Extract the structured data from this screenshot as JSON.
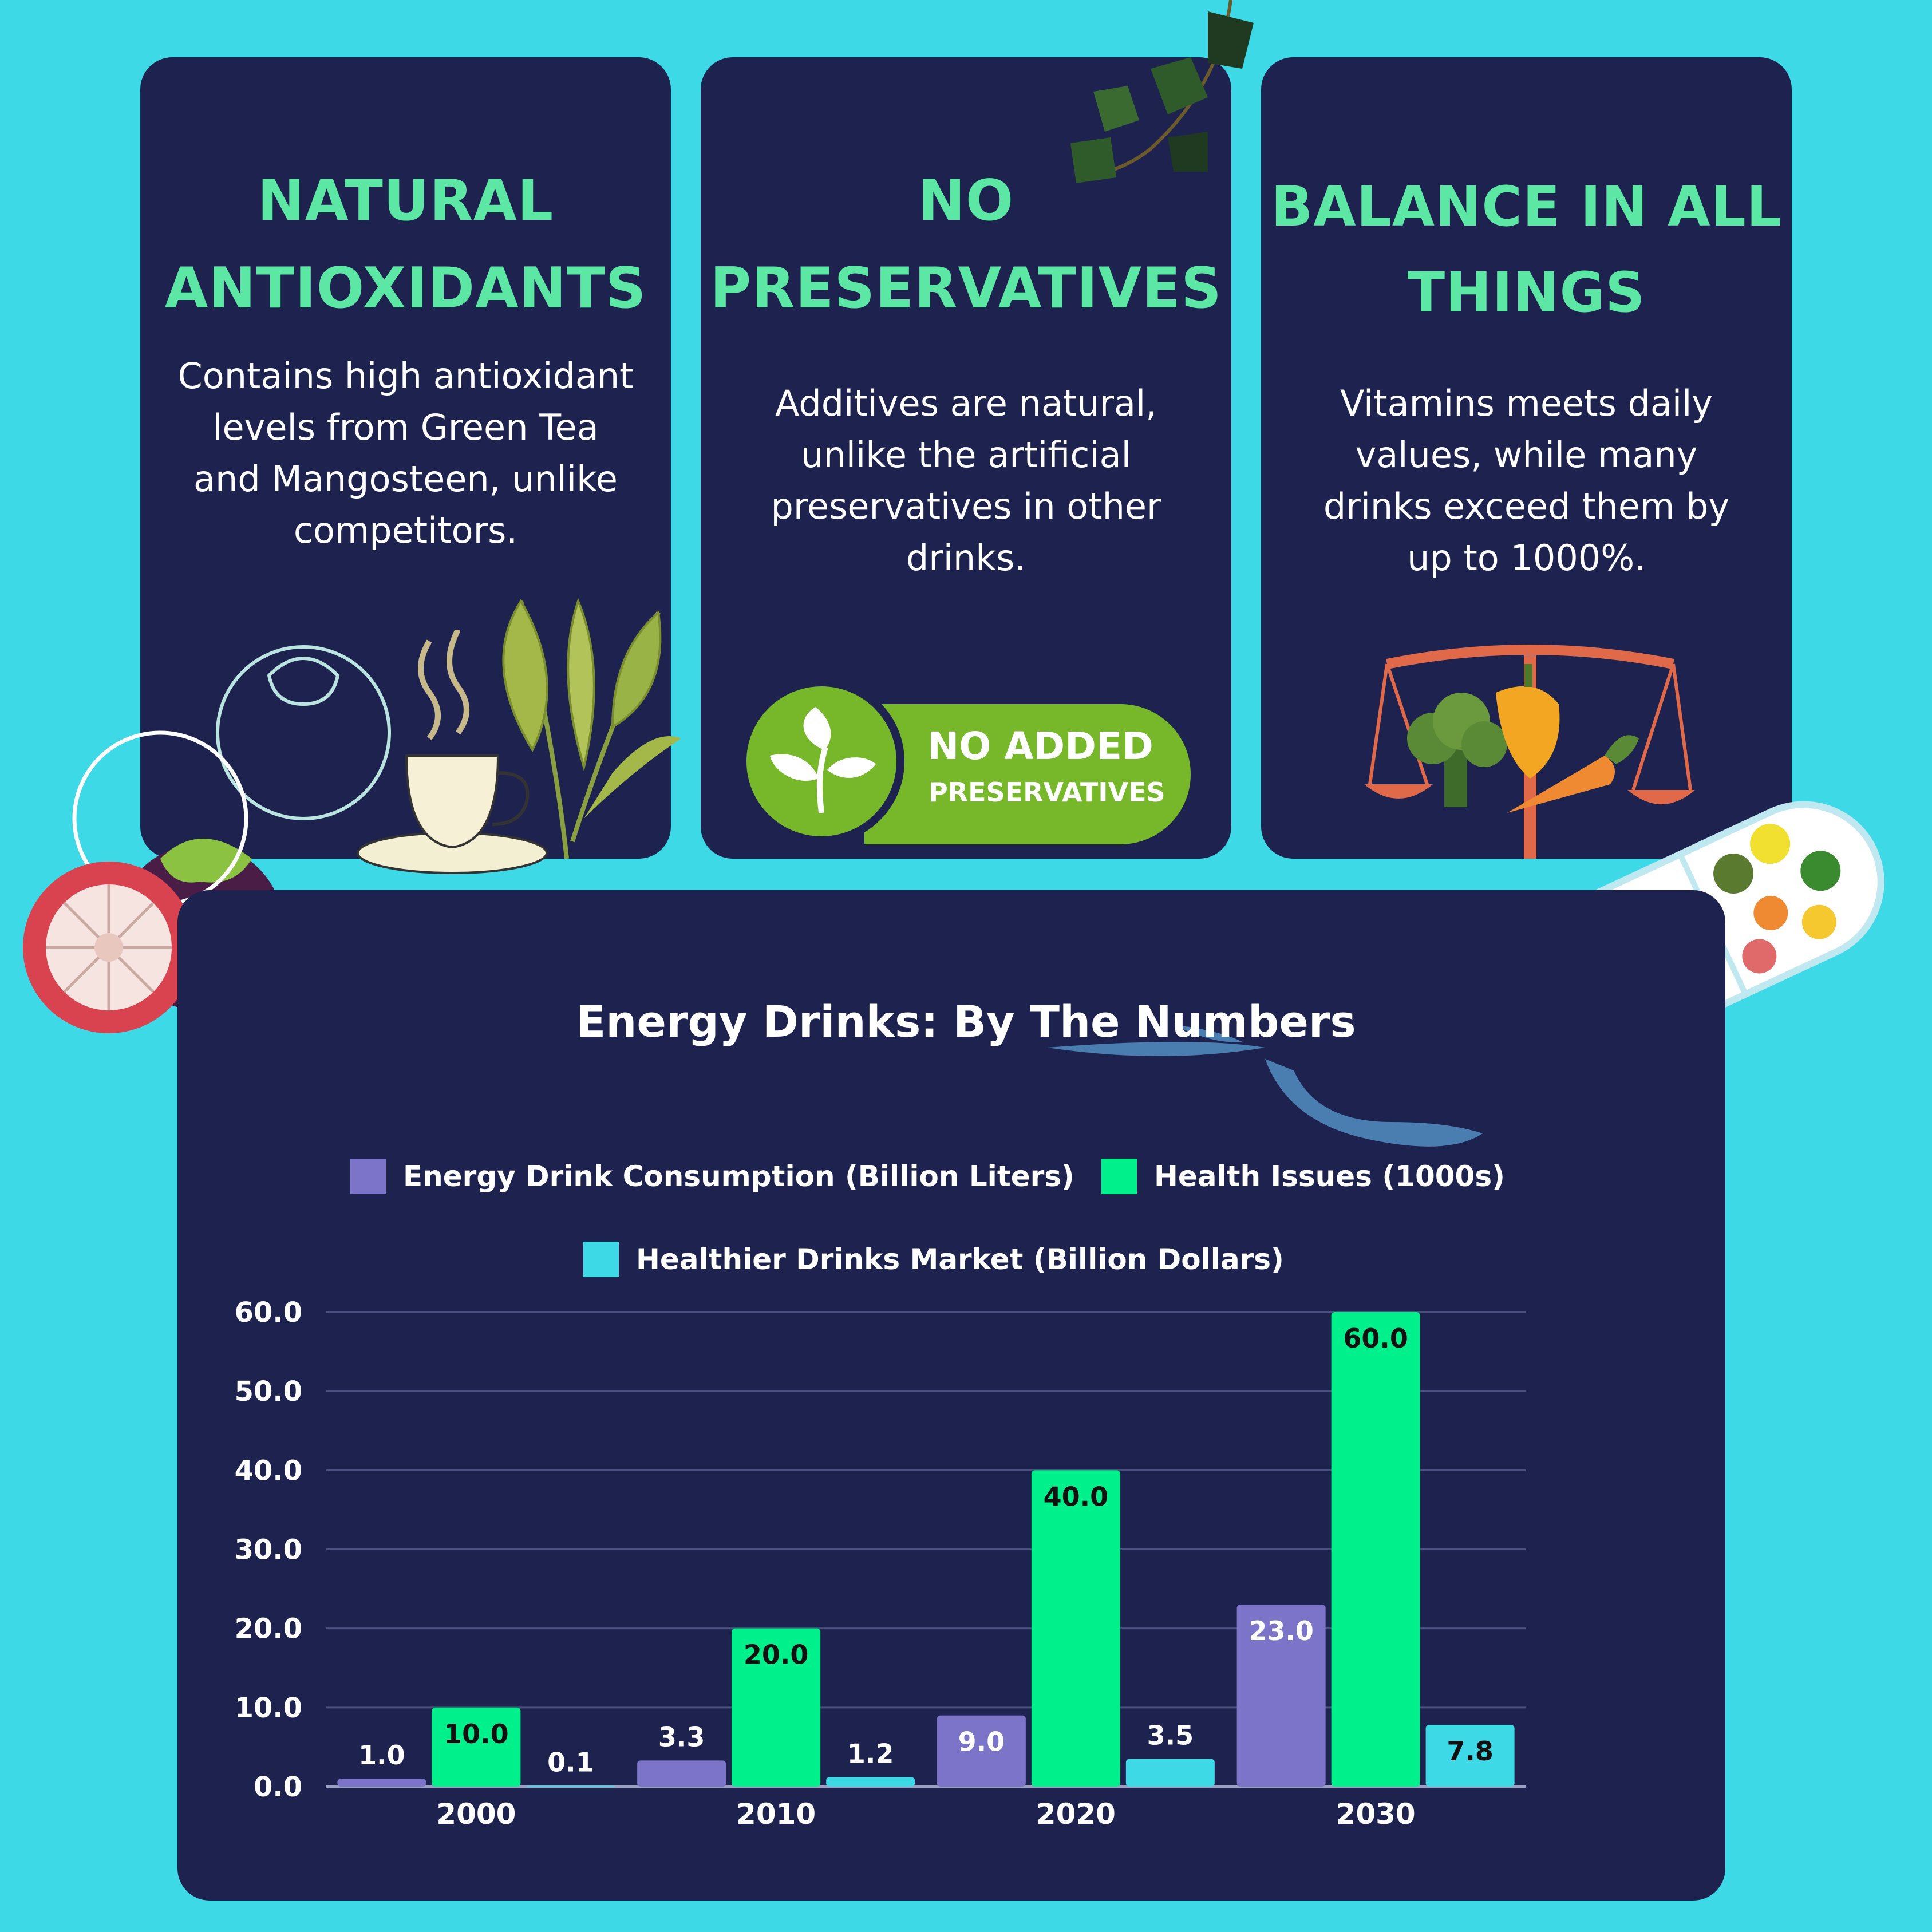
{
  "cards": [
    {
      "title_lines": [
        "NATURAL",
        "ANTIOXIDANTS"
      ],
      "body": "Contains high antioxidant levels from Green Tea and Mangosteen, unlike competitors."
    },
    {
      "title_lines": [
        "NO",
        "PRESERVATIVES"
      ],
      "body": "Additives are natural, unlike the artificial preservatives in other drinks."
    },
    {
      "title_lines": [
        "BALANCE IN ALL",
        "THINGS"
      ],
      "body": "Vitamins meets daily values, while many drinks exceed them by up to 1000%."
    }
  ],
  "badge": {
    "line1": "NO ADDED",
    "line2": "PRESERVATIVES",
    "icon": "leaf-icon"
  },
  "colors": {
    "background": "#3dd9e6",
    "card": "#1e224e",
    "accent_green": "#5ce7a4",
    "series_consumption": "#7b74c8",
    "series_health": "#00f08c",
    "series_market": "#3dd9e6"
  },
  "chart_data": {
    "type": "bar",
    "title": "Energy Drinks: By The Numbers",
    "categories": [
      "2000",
      "2010",
      "2020",
      "2030"
    ],
    "series": [
      {
        "name": "Energy Drink Consumption (Billion Liters)",
        "values": [
          1.0,
          3.3,
          9.0,
          23.0
        ],
        "color": "#7b74c8"
      },
      {
        "name": "Health Issues (1000s)",
        "values": [
          10.0,
          20.0,
          40.0,
          60.0
        ],
        "color": "#00f08c"
      },
      {
        "name": "Healthier Drinks Market (Billion Dollars)",
        "values": [
          0.1,
          1.2,
          3.5,
          7.8
        ],
        "color": "#3dd9e6"
      }
    ],
    "yticks": [
      "0.0",
      "10.0",
      "20.0",
      "30.0",
      "40.0",
      "50.0",
      "60.0"
    ],
    "ylim": [
      0,
      60
    ],
    "grid": true,
    "legend_position": "top-center",
    "xlabel": "",
    "ylabel": ""
  }
}
